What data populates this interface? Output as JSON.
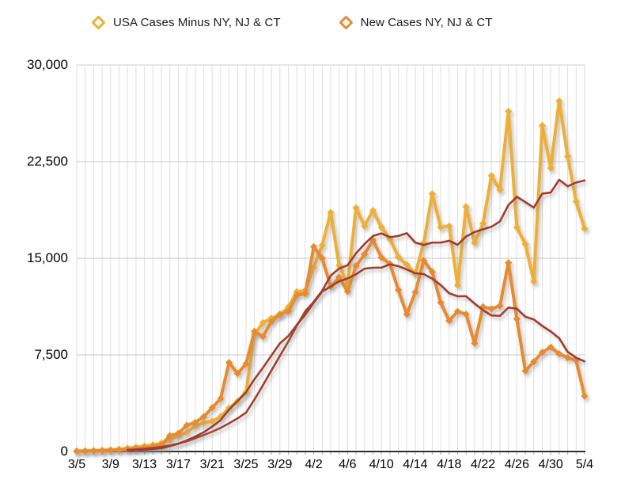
{
  "legend": {
    "items": [
      {
        "label": "USA Cases Minus NY, NJ & CT",
        "color": "#EFAF35"
      },
      {
        "label": "New Cases NY, NJ & CT",
        "color": "#E98A2F"
      }
    ]
  },
  "y_axis": {
    "labels": [
      "0",
      "7,500",
      "15,000",
      "22,500",
      "30,000"
    ]
  },
  "x_axis": {
    "labels": [
      "3/5",
      "3/9",
      "3/13",
      "3/17",
      "3/21",
      "3/25",
      "3/29",
      "4/2",
      "4/6",
      "4/10",
      "4/14",
      "4/18",
      "4/22",
      "4/26",
      "4/30",
      "5/4"
    ]
  },
  "chart_data": {
    "type": "line",
    "title": "",
    "xlabel": "",
    "ylabel": "",
    "ylim": [
      0,
      30000
    ],
    "yticks": [
      0,
      7500,
      15000,
      22500,
      30000
    ],
    "grid": "daily vertical gridlines, horizontal gridlines at yticks",
    "legend_position": "top",
    "x": [
      "3/5",
      "3/6",
      "3/7",
      "3/8",
      "3/9",
      "3/10",
      "3/11",
      "3/12",
      "3/13",
      "3/14",
      "3/15",
      "3/16",
      "3/17",
      "3/18",
      "3/19",
      "3/20",
      "3/21",
      "3/22",
      "3/23",
      "3/24",
      "3/25",
      "3/26",
      "3/27",
      "3/28",
      "3/29",
      "3/30",
      "3/31",
      "4/1",
      "4/2",
      "4/3",
      "4/4",
      "4/5",
      "4/6",
      "4/7",
      "4/8",
      "4/9",
      "4/10",
      "4/11",
      "4/12",
      "4/13",
      "4/14",
      "4/15",
      "4/16",
      "4/17",
      "4/18",
      "4/19",
      "4/20",
      "4/21",
      "4/22",
      "4/23",
      "4/24",
      "4/25",
      "4/26",
      "4/27",
      "4/28",
      "4/29",
      "4/30",
      "5/1",
      "5/2",
      "5/3",
      "5/4"
    ],
    "x_label_every_days": 4,
    "series": [
      {
        "name": "USA Cases Minus NY, NJ & CT",
        "color": "#EFAF35",
        "marker": "diamond",
        "values": [
          30,
          50,
          80,
          100,
          130,
          180,
          250,
          330,
          420,
          520,
          650,
          900,
          1230,
          1480,
          1970,
          2220,
          2350,
          2700,
          3380,
          3900,
          4600,
          9100,
          10000,
          10350,
          10600,
          11200,
          12400,
          12500,
          14300,
          16000,
          18550,
          14450,
          13000,
          18900,
          17500,
          18700,
          17400,
          16500,
          15100,
          14500,
          13800,
          16200,
          20000,
          17400,
          17500,
          12900,
          19000,
          16200,
          17700,
          21400,
          20300,
          26400,
          17400,
          16100,
          13200,
          25300,
          22000,
          27200,
          22900,
          19400,
          17300
        ]
      },
      {
        "name": "New Cases NY, NJ & CT",
        "color": "#E98A2F",
        "marker": "diamond",
        "values": [
          20,
          30,
          40,
          60,
          90,
          120,
          170,
          230,
          300,
          380,
          500,
          1230,
          1400,
          2030,
          2250,
          2700,
          3400,
          4100,
          6900,
          6050,
          6800,
          9330,
          8920,
          10090,
          10660,
          10870,
          12140,
          12260,
          15890,
          15000,
          12790,
          13530,
          12420,
          14400,
          15300,
          16400,
          15060,
          14570,
          12540,
          10640,
          12360,
          14820,
          13940,
          11560,
          10150,
          10870,
          10660,
          8400,
          11230,
          11070,
          11310,
          14650,
          10290,
          6250,
          6970,
          7690,
          8100,
          7580,
          7280,
          7075,
          4300
        ]
      }
    ],
    "trend_lines": {
      "description": "dark red smoothed trend (trailing 7-day moving average) drawn for each series, with drop shadow",
      "type": "trailing_moving_average",
      "window": 7,
      "color": "#A23E2A",
      "applies_to_series": [
        0,
        1
      ]
    }
  }
}
